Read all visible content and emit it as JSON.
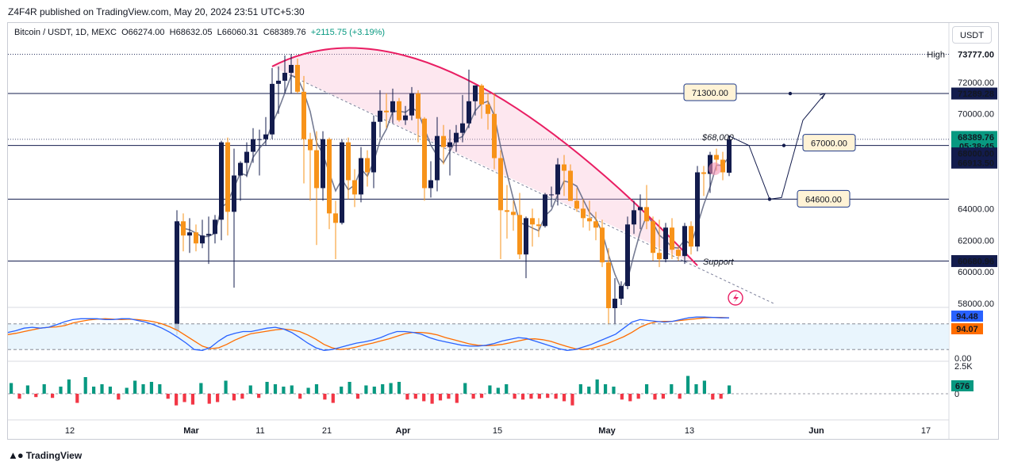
{
  "header": {
    "publisher": "Z4F4R published on TradingView.com, May 20, 2024 23:51 UTC+5:30",
    "symbol": "Bitcoin / USDT, 1D, MEXC",
    "open": "O66274.00",
    "high": "H68632.05",
    "low": "L66060.31",
    "close": "C68389.76",
    "change": "+2115.75 (+3.19%)",
    "currency": "USDT"
  },
  "footer": {
    "brand": "TradingView"
  },
  "chart_data": {
    "type": "candlestick",
    "symbol": "Bitcoin / USDT",
    "interval": "1D",
    "exchange": "MEXC",
    "x_ticks": [
      "12",
      "Mar",
      "11",
      "21",
      "Apr",
      "15",
      "May",
      "13",
      "Jun",
      "17"
    ],
    "y_ticks": [
      "72000.00",
      "70000.00",
      "64000.00",
      "62000.00",
      "60000.00",
      "58000.00"
    ],
    "ylim": [
      57800,
      74200
    ],
    "colors": {
      "up": "#131c4d",
      "down": "#f7931a",
      "arc": "#e91e63",
      "rsi_k": "#2962ff",
      "rsi_d": "#ff6d00",
      "vol_up": "#089981",
      "vol_down": "#f23645"
    },
    "candles": [
      {
        "o": 56300,
        "h": 63900,
        "l": 56000,
        "c": 63200
      },
      {
        "o": 63200,
        "h": 63700,
        "l": 61300,
        "c": 62300
      },
      {
        "o": 62300,
        "h": 63400,
        "l": 61200,
        "c": 62500
      },
      {
        "o": 62500,
        "h": 63000,
        "l": 61300,
        "c": 61800
      },
      {
        "o": 61800,
        "h": 63300,
        "l": 61500,
        "c": 62300
      },
      {
        "o": 62300,
        "h": 63500,
        "l": 60500,
        "c": 62400
      },
      {
        "o": 62400,
        "h": 63600,
        "l": 61800,
        "c": 63300
      },
      {
        "o": 63300,
        "h": 68300,
        "l": 62000,
        "c": 68200
      },
      {
        "o": 68200,
        "h": 68500,
        "l": 62300,
        "c": 63800
      },
      {
        "o": 63800,
        "h": 67800,
        "l": 59000,
        "c": 66100
      },
      {
        "o": 66100,
        "h": 67000,
        "l": 64500,
        "c": 66900
      },
      {
        "o": 66900,
        "h": 68200,
        "l": 66000,
        "c": 67600
      },
      {
        "o": 67600,
        "h": 69100,
        "l": 66900,
        "c": 68400
      },
      {
        "o": 68400,
        "h": 69000,
        "l": 66100,
        "c": 68400
      },
      {
        "o": 68400,
        "h": 69800,
        "l": 68000,
        "c": 68700
      },
      {
        "o": 68700,
        "h": 72900,
        "l": 68400,
        "c": 71900
      },
      {
        "o": 71900,
        "h": 73000,
        "l": 70000,
        "c": 72100
      },
      {
        "o": 72100,
        "h": 73700,
        "l": 71300,
        "c": 72600
      },
      {
        "o": 72600,
        "h": 73800,
        "l": 71300,
        "c": 73100
      },
      {
        "o": 73100,
        "h": 73500,
        "l": 71300,
        "c": 71400
      },
      {
        "o": 71400,
        "h": 72400,
        "l": 65600,
        "c": 68400
      },
      {
        "o": 68400,
        "h": 68800,
        "l": 64500,
        "c": 67700
      },
      {
        "o": 67700,
        "h": 68900,
        "l": 61700,
        "c": 65300
      },
      {
        "o": 65300,
        "h": 68900,
        "l": 64500,
        "c": 68400
      },
      {
        "o": 68400,
        "h": 68500,
        "l": 62700,
        "c": 63700
      },
      {
        "o": 63700,
        "h": 64500,
        "l": 60800,
        "c": 63100
      },
      {
        "o": 63100,
        "h": 68400,
        "l": 63000,
        "c": 68200
      },
      {
        "o": 68200,
        "h": 68500,
        "l": 64600,
        "c": 65800
      },
      {
        "o": 65800,
        "h": 66500,
        "l": 64100,
        "c": 64900
      },
      {
        "o": 64900,
        "h": 67900,
        "l": 64400,
        "c": 67200
      },
      {
        "o": 67200,
        "h": 67700,
        "l": 65400,
        "c": 66300
      },
      {
        "o": 66300,
        "h": 69900,
        "l": 65300,
        "c": 69500
      },
      {
        "o": 69500,
        "h": 71500,
        "l": 68500,
        "c": 70200
      },
      {
        "o": 70200,
        "h": 71300,
        "l": 69100,
        "c": 70100
      },
      {
        "o": 70100,
        "h": 71600,
        "l": 69400,
        "c": 70800
      },
      {
        "o": 70800,
        "h": 71000,
        "l": 69500,
        "c": 69600
      },
      {
        "o": 69600,
        "h": 70500,
        "l": 69300,
        "c": 69900
      },
      {
        "o": 69900,
        "h": 71700,
        "l": 69600,
        "c": 71300
      },
      {
        "o": 71300,
        "h": 71500,
        "l": 68200,
        "c": 69700
      },
      {
        "o": 69700,
        "h": 69800,
        "l": 64500,
        "c": 65300
      },
      {
        "o": 65300,
        "h": 67000,
        "l": 64700,
        "c": 65800
      },
      {
        "o": 65800,
        "h": 69800,
        "l": 65100,
        "c": 68600
      },
      {
        "o": 68600,
        "h": 69300,
        "l": 66800,
        "c": 67900
      },
      {
        "o": 67900,
        "h": 69000,
        "l": 66100,
        "c": 68200
      },
      {
        "o": 68200,
        "h": 69300,
        "l": 67600,
        "c": 68800
      },
      {
        "o": 68800,
        "h": 71200,
        "l": 68200,
        "c": 69400
      },
      {
        "o": 69400,
        "h": 72800,
        "l": 69100,
        "c": 70800
      },
      {
        "o": 70800,
        "h": 71800,
        "l": 69900,
        "c": 71800
      },
      {
        "o": 71800,
        "h": 71900,
        "l": 69700,
        "c": 70600
      },
      {
        "o": 70600,
        "h": 71300,
        "l": 69000,
        "c": 70000
      },
      {
        "o": 70000,
        "h": 71300,
        "l": 66500,
        "c": 67200
      },
      {
        "o": 67200,
        "h": 67700,
        "l": 60800,
        "c": 63900
      },
      {
        "o": 63900,
        "h": 65500,
        "l": 62100,
        "c": 63800
      },
      {
        "o": 63800,
        "h": 64500,
        "l": 62600,
        "c": 63600
      },
      {
        "o": 63600,
        "h": 65000,
        "l": 60800,
        "c": 61100
      },
      {
        "o": 61100,
        "h": 63500,
        "l": 59600,
        "c": 63400
      },
      {
        "o": 63400,
        "h": 64000,
        "l": 61600,
        "c": 63000
      },
      {
        "o": 63000,
        "h": 63400,
        "l": 62200,
        "c": 62900
      },
      {
        "o": 62900,
        "h": 65000,
        "l": 62800,
        "c": 64900
      },
      {
        "o": 64900,
        "h": 65400,
        "l": 64100,
        "c": 64900
      },
      {
        "o": 64900,
        "h": 67200,
        "l": 64200,
        "c": 66800
      },
      {
        "o": 66800,
        "h": 67400,
        "l": 64800,
        "c": 66400
      },
      {
        "o": 66400,
        "h": 66800,
        "l": 64500,
        "c": 64500
      },
      {
        "o": 64500,
        "h": 65300,
        "l": 63800,
        "c": 64000
      },
      {
        "o": 64000,
        "h": 64600,
        "l": 62800,
        "c": 63400
      },
      {
        "o": 63400,
        "h": 64500,
        "l": 62600,
        "c": 63200
      },
      {
        "o": 63200,
        "h": 63800,
        "l": 62000,
        "c": 62800
      },
      {
        "o": 62800,
        "h": 63300,
        "l": 60300,
        "c": 60600
      },
      {
        "o": 60600,
        "h": 61500,
        "l": 56600,
        "c": 57700
      },
      {
        "o": 57700,
        "h": 59600,
        "l": 56600,
        "c": 58300
      },
      {
        "o": 58300,
        "h": 59400,
        "l": 57900,
        "c": 59100
      },
      {
        "o": 59100,
        "h": 63500,
        "l": 58900,
        "c": 63000
      },
      {
        "o": 63000,
        "h": 64500,
        "l": 62400,
        "c": 63900
      },
      {
        "o": 63900,
        "h": 64900,
        "l": 62700,
        "c": 64100
      },
      {
        "o": 64100,
        "h": 65500,
        "l": 62700,
        "c": 63200
      },
      {
        "o": 63200,
        "h": 63500,
        "l": 60700,
        "c": 61200
      },
      {
        "o": 61200,
        "h": 63300,
        "l": 60300,
        "c": 60800
      },
      {
        "o": 60800,
        "h": 63100,
        "l": 60600,
        "c": 62800
      },
      {
        "o": 62800,
        "h": 63400,
        "l": 60800,
        "c": 61400
      },
      {
        "o": 61400,
        "h": 61600,
        "l": 60700,
        "c": 61000
      },
      {
        "o": 61000,
        "h": 63100,
        "l": 60500,
        "c": 62900
      },
      {
        "o": 62900,
        "h": 63200,
        "l": 61100,
        "c": 61600
      },
      {
        "o": 61600,
        "h": 66700,
        "l": 61300,
        "c": 66300
      },
      {
        "o": 66300,
        "h": 66700,
        "l": 64800,
        "c": 66200
      },
      {
        "o": 66200,
        "h": 67600,
        "l": 65000,
        "c": 67400
      },
      {
        "o": 67400,
        "h": 67800,
        "l": 66400,
        "c": 67100
      },
      {
        "o": 67100,
        "h": 67600,
        "l": 65800,
        "c": 66300
      },
      {
        "o": 66274,
        "h": 68632,
        "l": 66060,
        "c": 68389.76
      }
    ],
    "volume": [
      {
        "v": 0.45,
        "up": true
      },
      {
        "v": 0.3,
        "up": false
      },
      {
        "v": 0.35,
        "up": true
      },
      {
        "v": 0.2,
        "up": false
      },
      {
        "v": 0.4,
        "up": true
      },
      {
        "v": 0.25,
        "up": false
      },
      {
        "v": 0.3,
        "up": true
      },
      {
        "v": 0.6,
        "up": true
      },
      {
        "v": 0.55,
        "up": false
      },
      {
        "v": 0.7,
        "up": true
      },
      {
        "v": 0.3,
        "up": true
      },
      {
        "v": 0.4,
        "up": true
      },
      {
        "v": 0.3,
        "up": true
      },
      {
        "v": 0.35,
        "up": false
      },
      {
        "v": 0.25,
        "up": true
      },
      {
        "v": 0.55,
        "up": true
      },
      {
        "v": 0.4,
        "up": true
      },
      {
        "v": 0.5,
        "up": true
      },
      {
        "v": 0.4,
        "up": true
      },
      {
        "v": 0.3,
        "up": false
      },
      {
        "v": 0.7,
        "up": false
      },
      {
        "v": 0.5,
        "up": false
      },
      {
        "v": 0.65,
        "up": false
      },
      {
        "v": 0.45,
        "up": true
      },
      {
        "v": 0.6,
        "up": false
      },
      {
        "v": 0.5,
        "up": false
      },
      {
        "v": 0.55,
        "up": true
      },
      {
        "v": 0.4,
        "up": false
      },
      {
        "v": 0.3,
        "up": false
      },
      {
        "v": 0.35,
        "up": true
      },
      {
        "v": 0.25,
        "up": false
      },
      {
        "v": 0.5,
        "up": true
      },
      {
        "v": 0.4,
        "up": true
      },
      {
        "v": 0.3,
        "up": true
      },
      {
        "v": 0.35,
        "up": true
      },
      {
        "v": 0.3,
        "up": false
      },
      {
        "v": 0.25,
        "up": true
      },
      {
        "v": 0.4,
        "up": true
      },
      {
        "v": 0.35,
        "up": false
      },
      {
        "v": 0.55,
        "up": false
      },
      {
        "v": 0.3,
        "up": true
      },
      {
        "v": 0.5,
        "up": true
      },
      {
        "v": 0.3,
        "up": false
      },
      {
        "v": 0.35,
        "up": true
      },
      {
        "v": 0.3,
        "up": true
      },
      {
        "v": 0.4,
        "up": true
      },
      {
        "v": 0.45,
        "up": true
      },
      {
        "v": 0.5,
        "up": true
      },
      {
        "v": 0.35,
        "up": false
      },
      {
        "v": 0.3,
        "up": false
      },
      {
        "v": 0.45,
        "up": false
      },
      {
        "v": 0.6,
        "up": false
      },
      {
        "v": 0.4,
        "up": false
      },
      {
        "v": 0.3,
        "up": false
      },
      {
        "v": 0.55,
        "up": false
      },
      {
        "v": 0.45,
        "up": true
      },
      {
        "v": 0.3,
        "up": false
      },
      {
        "v": 0.25,
        "up": false
      },
      {
        "v": 0.35,
        "up": true
      },
      {
        "v": 0.25,
        "up": true
      },
      {
        "v": 0.4,
        "up": true
      },
      {
        "v": 0.3,
        "up": false
      },
      {
        "v": 0.35,
        "up": false
      },
      {
        "v": 0.3,
        "up": false
      },
      {
        "v": 0.3,
        "up": false
      },
      {
        "v": 0.25,
        "up": false
      },
      {
        "v": 0.3,
        "up": false
      },
      {
        "v": 0.45,
        "up": false
      },
      {
        "v": 0.7,
        "up": false
      },
      {
        "v": 0.4,
        "up": true
      },
      {
        "v": 0.3,
        "up": true
      },
      {
        "v": 0.6,
        "up": true
      },
      {
        "v": 0.4,
        "up": true
      },
      {
        "v": 0.3,
        "up": true
      },
      {
        "v": 0.35,
        "up": false
      },
      {
        "v": 0.45,
        "up": false
      },
      {
        "v": 0.3,
        "up": false
      },
      {
        "v": 0.4,
        "up": true
      },
      {
        "v": 0.35,
        "up": false
      },
      {
        "v": 0.3,
        "up": false
      },
      {
        "v": 0.4,
        "up": true
      },
      {
        "v": 0.3,
        "up": false
      },
      {
        "v": 0.75,
        "up": true
      },
      {
        "v": 0.4,
        "up": true
      },
      {
        "v": 0.55,
        "up": true
      },
      {
        "v": 0.35,
        "up": false
      },
      {
        "v": 0.3,
        "up": false
      },
      {
        "v": 0.35,
        "up": true
      }
    ],
    "rsi_k": [
      60,
      64,
      70,
      72,
      70,
      72,
      78,
      85,
      90,
      92,
      92,
      92,
      90,
      90,
      92,
      92,
      88,
      84,
      78,
      70,
      60,
      48,
      35,
      20,
      18,
      25,
      40,
      52,
      58,
      62,
      62,
      66,
      70,
      72,
      68,
      60,
      48,
      35,
      24,
      18,
      20,
      25,
      30,
      35,
      38,
      42,
      48,
      56,
      62,
      62,
      60,
      56,
      48,
      42,
      38,
      34,
      30,
      28,
      28,
      30,
      34,
      40,
      44,
      48,
      46,
      40,
      34,
      28,
      22,
      18,
      20,
      26,
      32,
      40,
      48,
      56,
      70,
      84,
      90,
      88,
      86,
      84,
      86,
      90,
      94,
      96,
      96,
      95,
      94,
      94
    ],
    "rsi_d": [
      55,
      58,
      62,
      66,
      70,
      72,
      73,
      76,
      82,
      86,
      89,
      91,
      92,
      91,
      90,
      91,
      90,
      88,
      85,
      80,
      73,
      64,
      52,
      40,
      28,
      22,
      24,
      32,
      42,
      50,
      57,
      60,
      63,
      66,
      68,
      66,
      62,
      54,
      44,
      32,
      24,
      20,
      22,
      26,
      31,
      35,
      40,
      45,
      51,
      57,
      60,
      60,
      58,
      54,
      48,
      43,
      38,
      33,
      30,
      29,
      30,
      32,
      36,
      40,
      44,
      45,
      43,
      39,
      33,
      27,
      22,
      20,
      22,
      28,
      34,
      42,
      50,
      60,
      72,
      80,
      85,
      86,
      86,
      88,
      90,
      92,
      94,
      95,
      95,
      94
    ],
    "rsi_labels": [
      "94.48",
      "94.07"
    ],
    "volume_label": "676",
    "volume_axis": [
      "2.5K",
      "0"
    ],
    "rsi_axis": [
      "0.00"
    ],
    "high_label": "High",
    "high_value": "73777.00",
    "price_labels": [
      {
        "text": "73777.00",
        "price": 73777,
        "kind": "plain"
      },
      {
        "text": "71289.28",
        "price": 71289.28,
        "kind": "dark"
      },
      {
        "text": "68389.76",
        "price": 68389.76,
        "kind": "green"
      },
      {
        "text": "05:38:45",
        "price": 68000,
        "kind": "green-sub"
      },
      {
        "text": "68000.00",
        "price": 67700,
        "kind": "dark"
      },
      {
        "text": "66913.50",
        "price": 66913.5,
        "kind": "dark"
      },
      {
        "text": "60680.96",
        "price": 60680.96,
        "kind": "dark"
      }
    ],
    "horizontal_levels": [
      71289.28,
      68000,
      64600,
      60680.96
    ],
    "dotted_levels": [
      73777,
      68389.76
    ],
    "annotations": {
      "target_1": "71300.00",
      "target_2": "67000.00",
      "target_3": "64600.00",
      "note_68k": "$68,000",
      "support": "Support"
    }
  }
}
